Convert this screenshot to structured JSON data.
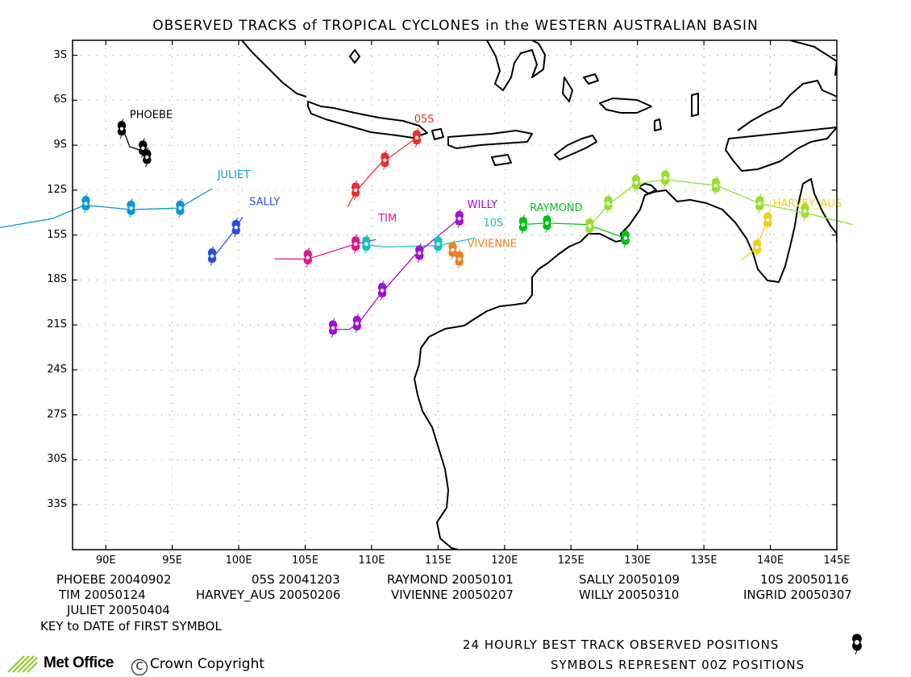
{
  "title": "OBSERVED TRACKS of TROPICAL CYCLONES in the WESTERN AUSTRALIAN BASIN",
  "lat_labels": [
    "3S",
    "6S",
    "9S",
    "12S",
    "15S",
    "18S",
    "21S",
    "24S",
    "27S",
    "30S",
    "33S"
  ],
  "lon_labels": [
    "90E",
    "95E",
    "100E",
    "105E",
    "110E",
    "115E",
    "120E",
    "125E",
    "130E",
    "135E",
    "140E",
    "145E"
  ],
  "storms": [
    {
      "name": "PHOEBE",
      "color": "#000000",
      "track": [
        [
          91.2,
          -7.9
        ],
        [
          91.5,
          -8.4
        ],
        [
          91.8,
          -9.1
        ],
        [
          92.5,
          -9.3
        ],
        [
          92.9,
          -9.6
        ],
        [
          93.1,
          -9.9
        ]
      ],
      "symbols": [
        [
          91.2,
          -7.9
        ],
        [
          92.8,
          -9.2
        ],
        [
          93.1,
          -9.8
        ]
      ]
    },
    {
      "name": "05S",
      "color": "#e83030",
      "track": [
        [
          108.2,
          -13.1
        ],
        [
          108.9,
          -12.0
        ],
        [
          110.6,
          -10.3
        ],
        [
          113.4,
          -8.5
        ]
      ],
      "symbols": [
        [
          108.8,
          -12.0
        ],
        [
          111.0,
          -10.0
        ],
        [
          113.4,
          -8.5
        ]
      ]
    },
    {
      "name": "JULIET",
      "color": "#0d98d8",
      "track": [
        [
          82.0,
          -14.5
        ],
        [
          86.0,
          -13.9
        ],
        [
          88.4,
          -13.0
        ],
        [
          91.9,
          -13.3
        ],
        [
          95.5,
          -13.2
        ],
        [
          98.0,
          -11.9
        ]
      ],
      "symbols": [
        [
          88.5,
          -12.9
        ],
        [
          91.9,
          -13.2
        ],
        [
          95.6,
          -13.2
        ]
      ]
    },
    {
      "name": "SALLY",
      "color": "#2c4ee0",
      "track": [
        [
          97.9,
          -16.7
        ],
        [
          99.5,
          -14.9
        ],
        [
          100.3,
          -13.8
        ]
      ],
      "symbols": [
        [
          98.0,
          -16.4
        ],
        [
          99.8,
          -14.5
        ]
      ]
    },
    {
      "name": "TIM",
      "color": "#e01890",
      "track": [
        [
          102.7,
          -16.6
        ],
        [
          105.2,
          -16.6
        ],
        [
          108.8,
          -15.6
        ],
        [
          110.3,
          -15.3
        ]
      ],
      "symbols": [
        [
          105.2,
          -16.5
        ],
        [
          108.8,
          -15.6
        ]
      ]
    },
    {
      "name": "10S",
      "color": "#18c0c0",
      "track": [
        [
          109.3,
          -15.6
        ],
        [
          111.0,
          -15.8
        ],
        [
          115.0,
          -15.7
        ],
        [
          117.8,
          -15.2
        ]
      ],
      "symbols": [
        [
          109.6,
          -15.6
        ],
        [
          115.0,
          -15.6
        ]
      ]
    },
    {
      "name": "WILLY",
      "color": "#a010d0",
      "track": [
        [
          107.1,
          -21.3
        ],
        [
          108.3,
          -21.3
        ],
        [
          109.0,
          -20.9
        ],
        [
          110.8,
          -18.8
        ],
        [
          113.3,
          -16.3
        ],
        [
          116.6,
          -13.9
        ]
      ],
      "symbols": [
        [
          107.1,
          -21.2
        ],
        [
          108.9,
          -20.9
        ],
        [
          110.8,
          -18.7
        ],
        [
          113.6,
          -16.2
        ],
        [
          116.6,
          -13.9
        ]
      ]
    },
    {
      "name": "VIVIENNE",
      "color": "#f08020",
      "track": [
        [
          116.1,
          -16.0
        ],
        [
          116.6,
          -16.6
        ]
      ],
      "symbols": [
        [
          116.1,
          -16.0
        ],
        [
          116.6,
          -16.6
        ]
      ]
    },
    {
      "name": "RAYMOND",
      "color": "#08c018",
      "track": [
        [
          121.2,
          -14.3
        ],
        [
          123.2,
          -14.2
        ],
        [
          126.2,
          -14.3
        ],
        [
          129.1,
          -15.2
        ]
      ],
      "symbols": [
        [
          121.4,
          -14.3
        ],
        [
          123.2,
          -14.2
        ],
        [
          129.1,
          -15.2
        ]
      ]
    },
    {
      "name": "INGRID",
      "color": "#98e030",
      "track": [
        [
          126.3,
          -14.5
        ],
        [
          127.8,
          -13.0
        ],
        [
          129.8,
          -11.6
        ],
        [
          132.1,
          -11.3
        ],
        [
          136.0,
          -11.7
        ],
        [
          139.2,
          -12.9
        ],
        [
          142.5,
          -13.5
        ],
        [
          146.2,
          -14.3
        ]
      ],
      "symbols": [
        [
          126.4,
          -14.4
        ],
        [
          127.8,
          -12.9
        ],
        [
          129.9,
          -11.5
        ],
        [
          132.1,
          -11.2
        ],
        [
          135.9,
          -11.7
        ],
        [
          139.2,
          -12.9
        ],
        [
          142.6,
          -13.4
        ]
      ]
    },
    {
      "name": "HARVEY_AUS",
      "color": "#f0d020",
      "track": [
        [
          139.8,
          -14.0
        ],
        [
          138.9,
          -15.9
        ],
        [
          137.8,
          -16.7
        ]
      ],
      "symbols": [
        [
          139.8,
          -14.0
        ],
        [
          139.0,
          -15.8
        ]
      ]
    }
  ],
  "storm_labels": [
    {
      "text": "PHOEBE",
      "storm": "PHOEBE",
      "lon": 91.8,
      "lat": -7.2
    },
    {
      "text": "05S",
      "storm": "05S",
      "lon": 113.2,
      "lat": -7.5
    },
    {
      "text": "JULIET",
      "storm": "JULIET",
      "lon": 98.4,
      "lat": -11.2
    },
    {
      "text": "SALLY",
      "storm": "SALLY",
      "lon": 100.8,
      "lat": -13.0
    },
    {
      "text": "TIM",
      "storm": "TIM",
      "lon": 110.5,
      "lat": -14.1
    },
    {
      "text": "WILLY",
      "storm": "WILLY",
      "lon": 117.2,
      "lat": -13.2
    },
    {
      "text": "RAYMOND",
      "storm": "RAYMOND",
      "lon": 121.9,
      "lat": -13.4
    },
    {
      "text": "10S",
      "storm": "10S",
      "lon": 118.4,
      "lat": -14.4
    },
    {
      "text": "VIVIENNE",
      "storm": "VIVIENNE",
      "lon": 117.2,
      "lat": -15.8
    },
    {
      "text": "HARVEY_AUS",
      "storm": "HARVEY_AUS",
      "lon": 140.2,
      "lat": -13.1
    }
  ],
  "legend": [
    {
      "name": "PHOEBE",
      "date": "20040902"
    },
    {
      "name": "05S",
      "date": "20041203"
    },
    {
      "name": "RAYMOND",
      "date": "20050101"
    },
    {
      "name": "SALLY",
      "date": "20050109"
    },
    {
      "name": "10S",
      "date": "20050116"
    },
    {
      "name": "TIM",
      "date": "20050124"
    },
    {
      "name": "HARVEY_AUS",
      "date": "20050206"
    },
    {
      "name": "VIVIENNE",
      "date": "20050207"
    },
    {
      "name": "WILLY",
      "date": "20050310"
    },
    {
      "name": "INGRID",
      "date": "20050307"
    },
    {
      "name": "JULIET",
      "date": "20050404"
    }
  ],
  "key_text": "KEY to DATE of FIRST SYMBOL",
  "footer_line1": "24 HOURLY BEST TRACK OBSERVED POSITIONS",
  "footer_line2": "SYMBOLS REPRESENT 00Z POSITIONS",
  "logo_text": "Met Office",
  "copyright_symbol": "C",
  "copyright_text": "Crown Copyright"
}
